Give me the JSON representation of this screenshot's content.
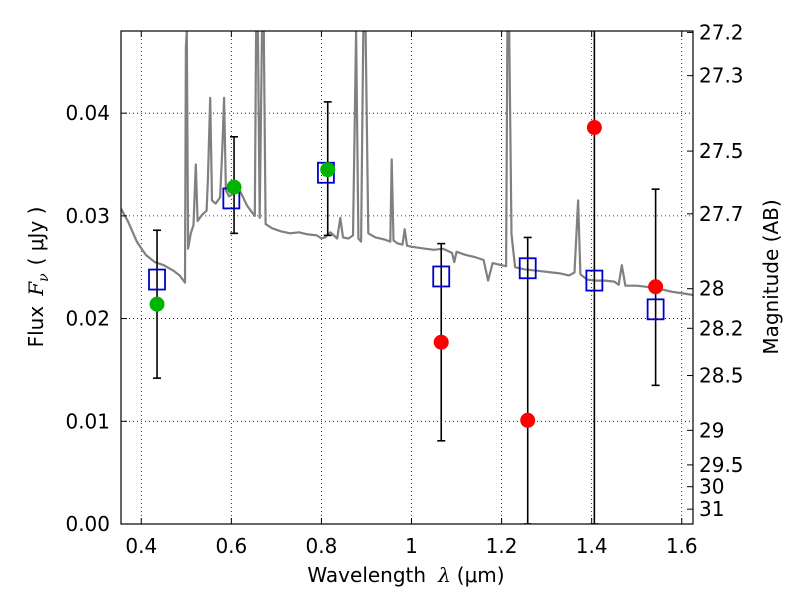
{
  "chart_data": {
    "type": "scatter",
    "xlabel_prefix": "Wavelength",
    "xlabel_symbol": "λ",
    "xlabel_unit": "(μm)",
    "ylabel_prefix": "Flux",
    "ylabel_symbol": "F",
    "ylabel_subscript": "ν",
    "ylabel_unit": "( μJy )",
    "y2label": "Magnitude (AB)",
    "xlim": [
      0.355,
      1.625
    ],
    "ylim": [
      0.0,
      0.048
    ],
    "grid": true,
    "x_ticks": [
      0.4,
      0.6,
      0.8,
      1.0,
      1.2,
      1.4,
      1.6
    ],
    "x_tick_labels": [
      "0.4",
      "0.6",
      "0.8",
      "1",
      "1.2",
      "1.4",
      "1.6"
    ],
    "y_ticks": [
      0.0,
      0.01,
      0.02,
      0.03,
      0.04
    ],
    "y_tick_labels": [
      "0.00",
      "0.01",
      "0.02",
      "0.03",
      "0.04"
    ],
    "mag_ticks": [
      27.2,
      27.3,
      27.5,
      27.7,
      28,
      28.2,
      28.5,
      29,
      29.5,
      30,
      31
    ],
    "mag_tick_labels": [
      "27.2",
      "27.3",
      "27.5",
      "27.7",
      "28",
      "28.2",
      "28.5",
      "29",
      "29.5",
      "30",
      "31"
    ],
    "colors": {
      "model": "#808080",
      "green": "#00b400",
      "red": "#ff0000",
      "square": "#0000cc",
      "errorbar": "#000000"
    },
    "green_points": [
      {
        "x": 0.435,
        "y": 0.0214,
        "yerr_low": 0.0142,
        "yerr_high": 0.0286
      },
      {
        "x": 0.606,
        "y": 0.0328,
        "yerr_low": 0.0283,
        "yerr_high": 0.0377
      },
      {
        "x": 0.814,
        "y": 0.0345,
        "yerr_low": 0.0281,
        "yerr_high": 0.0411
      }
    ],
    "red_points": [
      {
        "x": 1.066,
        "y": 0.0177,
        "yerr_low": 0.0081,
        "yerr_high": 0.0273
      },
      {
        "x": 1.258,
        "y": 0.0101,
        "yerr_low": 0.0,
        "yerr_high": 0.0279
      },
      {
        "x": 1.406,
        "y": 0.0386,
        "yerr_low": 0.0,
        "yerr_high": 0.049
      },
      {
        "x": 1.542,
        "y": 0.0231,
        "yerr_low": 0.0135,
        "yerr_high": 0.0326
      }
    ],
    "model_photometry": [
      {
        "x": 0.435,
        "y": 0.0238
      },
      {
        "x": 0.6,
        "y": 0.0317
      },
      {
        "x": 0.81,
        "y": 0.0342
      },
      {
        "x": 1.066,
        "y": 0.0241
      },
      {
        "x": 1.258,
        "y": 0.0249
      },
      {
        "x": 1.406,
        "y": 0.0237
      },
      {
        "x": 1.542,
        "y": 0.0209
      }
    ],
    "model_spectrum": [
      [
        0.355,
        0.0307
      ],
      [
        0.37,
        0.0295
      ],
      [
        0.39,
        0.0275
      ],
      [
        0.41,
        0.0262
      ],
      [
        0.43,
        0.0255
      ],
      [
        0.45,
        0.0252
      ],
      [
        0.47,
        0.0247
      ],
      [
        0.485,
        0.0242
      ],
      [
        0.497,
        0.0235
      ],
      [
        0.499,
        0.0465
      ],
      [
        0.501,
        0.048
      ],
      [
        0.504,
        0.0268
      ],
      [
        0.51,
        0.0283
      ],
      [
        0.516,
        0.0291
      ],
      [
        0.521,
        0.035
      ],
      [
        0.525,
        0.0295
      ],
      [
        0.535,
        0.0301
      ],
      [
        0.545,
        0.0305
      ],
      [
        0.548,
        0.0335
      ],
      [
        0.553,
        0.0415
      ],
      [
        0.557,
        0.0315
      ],
      [
        0.565,
        0.0312
      ],
      [
        0.575,
        0.0318
      ],
      [
        0.58,
        0.0365
      ],
      [
        0.584,
        0.0415
      ],
      [
        0.588,
        0.0325
      ],
      [
        0.595,
        0.0319
      ],
      [
        0.605,
        0.0322
      ],
      [
        0.615,
        0.0328
      ],
      [
        0.625,
        0.0319
      ],
      [
        0.635,
        0.031
      ],
      [
        0.645,
        0.0304
      ],
      [
        0.652,
        0.03
      ],
      [
        0.655,
        0.048
      ],
      [
        0.659,
        0.048
      ],
      [
        0.663,
        0.0298
      ],
      [
        0.668,
        0.048
      ],
      [
        0.672,
        0.048
      ],
      [
        0.676,
        0.0292
      ],
      [
        0.69,
        0.0288
      ],
      [
        0.71,
        0.0285
      ],
      [
        0.73,
        0.0283
      ],
      [
        0.75,
        0.0284
      ],
      [
        0.77,
        0.0282
      ],
      [
        0.79,
        0.0281
      ],
      [
        0.8,
        0.0278
      ],
      [
        0.808,
        0.0279
      ],
      [
        0.82,
        0.0284
      ],
      [
        0.835,
        0.0278
      ],
      [
        0.842,
        0.0298
      ],
      [
        0.848,
        0.0279
      ],
      [
        0.86,
        0.0278
      ],
      [
        0.87,
        0.0281
      ],
      [
        0.877,
        0.048
      ],
      [
        0.882,
        0.0278
      ],
      [
        0.888,
        0.0275
      ],
      [
        0.893,
        0.048
      ],
      [
        0.898,
        0.048
      ],
      [
        0.904,
        0.0283
      ],
      [
        0.92,
        0.0279
      ],
      [
        0.94,
        0.0277
      ],
      [
        0.953,
        0.0275
      ],
      [
        0.956,
        0.0355
      ],
      [
        0.96,
        0.0276
      ],
      [
        0.97,
        0.0273
      ],
      [
        0.98,
        0.0272
      ],
      [
        0.985,
        0.0287
      ],
      [
        0.99,
        0.0271
      ],
      [
        1.0,
        0.027
      ],
      [
        1.03,
        0.0268
      ],
      [
        1.05,
        0.0267
      ],
      [
        1.07,
        0.0268
      ],
      [
        1.09,
        0.0264
      ],
      [
        1.095,
        0.0255
      ],
      [
        1.1,
        0.0265
      ],
      [
        1.12,
        0.0262
      ],
      [
        1.14,
        0.026
      ],
      [
        1.16,
        0.0257
      ],
      [
        1.17,
        0.0237
      ],
      [
        1.18,
        0.0254
      ],
      [
        1.2,
        0.0252
      ],
      [
        1.21,
        0.0251
      ],
      [
        1.213,
        0.048
      ],
      [
        1.217,
        0.048
      ],
      [
        1.222,
        0.0282
      ],
      [
        1.23,
        0.025
      ],
      [
        1.25,
        0.0248
      ],
      [
        1.27,
        0.0247
      ],
      [
        1.29,
        0.0246
      ],
      [
        1.31,
        0.0245
      ],
      [
        1.33,
        0.0244
      ],
      [
        1.35,
        0.0242
      ],
      [
        1.362,
        0.0245
      ],
      [
        1.37,
        0.0315
      ],
      [
        1.375,
        0.0243
      ],
      [
        1.39,
        0.0238
      ],
      [
        1.41,
        0.0237
      ],
      [
        1.43,
        0.0237
      ],
      [
        1.45,
        0.0236
      ],
      [
        1.46,
        0.0233
      ],
      [
        1.467,
        0.0252
      ],
      [
        1.475,
        0.0232
      ],
      [
        1.5,
        0.0232
      ],
      [
        1.52,
        0.0231
      ],
      [
        1.55,
        0.0229
      ],
      [
        1.58,
        0.0226
      ],
      [
        1.61,
        0.0224
      ],
      [
        1.625,
        0.0223
      ]
    ]
  }
}
